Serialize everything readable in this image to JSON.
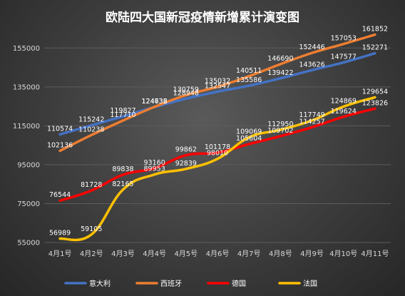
{
  "chart_data": {
    "type": "line",
    "title": "欧陆四大国新冠疫情新增累计演变图",
    "categories": [
      "4月1号",
      "4月2号",
      "4月3号",
      "4月4号",
      "4月5号",
      "4月6号",
      "4月7号",
      "4月8号",
      "4月9号",
      "4月10号",
      "4月11号"
    ],
    "y_ticks": [
      "55000",
      "75000",
      "95000",
      "115000",
      "135000",
      "155000"
    ],
    "ylim": [
      55000,
      165000
    ],
    "grid": true,
    "legend_position": "bottom",
    "series": [
      {
        "name": "意大利",
        "color": "#4472C4",
        "values": [
          110574,
          115242,
          119827,
          124632,
          128948,
          132547,
          135586,
          139422,
          143626,
          147577,
          152271
        ]
      },
      {
        "name": "西班牙",
        "color": "#ED7D31",
        "values": [
          102136,
          110238,
          117710,
          124736,
          130759,
          135032,
          140511,
          146690,
          152446,
          157053,
          161852
        ]
      },
      {
        "name": "德国",
        "color": "#FF0000",
        "values": [
          76544,
          81728,
          89838,
          93160,
          99862,
          101178,
          105604,
          109702,
          114257,
          119624,
          123826
        ]
      },
      {
        "name": "法国",
        "color": "#FFC000",
        "values": [
          56989,
          59105,
          82165,
          89953,
          92839,
          98010,
          109069,
          112950,
          117749,
          124869,
          129654
        ]
      }
    ]
  }
}
